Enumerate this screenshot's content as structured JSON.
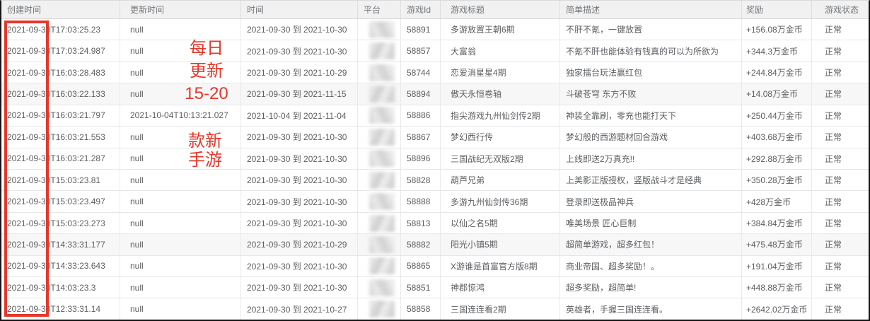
{
  "table": {
    "columns": [
      {
        "key": "created",
        "label": "创建时间"
      },
      {
        "key": "updated",
        "label": "更新时间"
      },
      {
        "key": "time",
        "label": "时间"
      },
      {
        "key": "platform",
        "label": "平台"
      },
      {
        "key": "game_id",
        "label": "游戏Id"
      },
      {
        "key": "title",
        "label": "游戏标题"
      },
      {
        "key": "desc",
        "label": "简单描述"
      },
      {
        "key": "reward",
        "label": "奖励"
      },
      {
        "key": "status",
        "label": "游戏状态"
      }
    ],
    "rows": [
      {
        "created": "2021-09-30T17:03:25.23",
        "updated": "null",
        "time": "2021-09-30 到 2021-10-30",
        "game_id": "58891",
        "title": "多游放置王朝6期",
        "desc": "不肝不氪，一键放置",
        "reward": "+156.08万金币",
        "status": "正常",
        "shaded": false
      },
      {
        "created": "2021-09-30T17:03:24.987",
        "updated": "null",
        "time": "2021-09-30 到 2021-10-30",
        "game_id": "58857",
        "title": "大富翁",
        "desc": "不氪不肝也能体验有钱真的可以为所欲为",
        "reward": "+344.3万金币",
        "status": "正常",
        "shaded": false
      },
      {
        "created": "2021-09-30T16:03:28.483",
        "updated": "null",
        "time": "2021-09-30 到 2021-10-29",
        "game_id": "58744",
        "title": "恋爱消星星4期",
        "desc": "独家擂台玩法赢红包",
        "reward": "+244.84万金币",
        "status": "正常",
        "shaded": false
      },
      {
        "created": "2021-09-30T16:03:22.133",
        "updated": "null",
        "time": "2021-09-30 到 2021-11-15",
        "game_id": "58894",
        "title": "傲天永恒卷轴",
        "desc": "斗破苍穹 东方不败",
        "reward": "+14.08万金币",
        "status": "正常",
        "shaded": true
      },
      {
        "created": "2021-09-30T16:03:21.797",
        "updated": "2021-10-04T10:13:21.027",
        "time": "2021-10-04 到 2021-11-04",
        "game_id": "58886",
        "title": "指尖游戏九州仙剑传2期",
        "desc": "神装全靠刷，零充也能打天下",
        "reward": "+250.44万金币",
        "status": "正常",
        "shaded": false
      },
      {
        "created": "2021-09-30T16:03:21.553",
        "updated": "null",
        "time": "2021-09-30 到 2021-10-30",
        "game_id": "58867",
        "title": "梦幻西行传",
        "desc": "梦幻般的西游题材回合游戏",
        "reward": "+403.68万金币",
        "status": "正常",
        "shaded": false
      },
      {
        "created": "2021-09-30T16:03:21.287",
        "updated": "null",
        "time": "2021-09-30 到 2021-10-30",
        "game_id": "58896",
        "title": "三国战纪无双版2期",
        "desc": "上线即送2万真充!!",
        "reward": "+292.88万金币",
        "status": "正常",
        "shaded": false
      },
      {
        "created": "2021-09-30T15:03:23.81",
        "updated": "null",
        "time": "2021-09-30 到 2021-10-30",
        "game_id": "58828",
        "title": "葫芦兄弟",
        "desc": "上美影正版授权，竖版战斗才是经典",
        "reward": "+350.28万金币",
        "status": "正常",
        "shaded": false
      },
      {
        "created": "2021-09-30T15:03:23.497",
        "updated": "null",
        "time": "2021-09-30 到 2021-10-30",
        "game_id": "58888",
        "title": "多游九州仙剑传36期",
        "desc": "登录即送极品神兵",
        "reward": "+428万金币",
        "status": "正常",
        "shaded": false
      },
      {
        "created": "2021-09-30T15:03:23.273",
        "updated": "null",
        "time": "2021-09-30 到 2021-10-30",
        "game_id": "58813",
        "title": "以仙之名5期",
        "desc": "唯美场景 匠心巨制",
        "reward": "+384.84万金币",
        "status": "正常",
        "shaded": false
      },
      {
        "created": "2021-09-30T14:33:31.177",
        "updated": "null",
        "time": "2021-09-30 到 2021-10-29",
        "game_id": "58882",
        "title": "阳光小镇5期",
        "desc": "超简单游戏，超多红包！",
        "reward": "+475.48万金币",
        "status": "正常",
        "shaded": true
      },
      {
        "created": "2021-09-30T14:33:23.643",
        "updated": "null",
        "time": "2021-09-30 到 2021-10-30",
        "game_id": "58865",
        "title": "X游谁是首富官方版8期",
        "desc": "商业帝国、超多奖励！。",
        "reward": "+191.04万金币",
        "status": "正常",
        "shaded": false
      },
      {
        "created": "2021-09-30T14:03:23.3",
        "updated": "null",
        "time": "2021-09-30 到 2021-10-30",
        "game_id": "58851",
        "title": "神郡惊鸿",
        "desc": "超多奖励，超简单!",
        "reward": "+448.88万金币",
        "status": "正常",
        "shaded": false
      },
      {
        "created": "2021-09-30T12:33:31.14",
        "updated": "null",
        "time": "2021-09-30 到 2021-10-27",
        "game_id": "58858",
        "title": "三国连连看2期",
        "desc": "英雄者，手握三国连连看。",
        "reward": "+2642.02万金币",
        "status": "正常",
        "shaded": false
      }
    ]
  },
  "annotations": {
    "top_note": {
      "lines": [
        "每日",
        "更新",
        "15-20"
      ]
    },
    "bottom_note": {
      "lines": [
        "款新",
        "手游"
      ]
    },
    "annotation_red": "#e5382b"
  },
  "colors": {
    "header_bg": "#f1f1f1",
    "header_text": "#72767b",
    "body_text": "#5c5f63",
    "row_divider": "#e7e7e7",
    "outer_border": "#161616",
    "annotation_red": "#e5382b"
  }
}
